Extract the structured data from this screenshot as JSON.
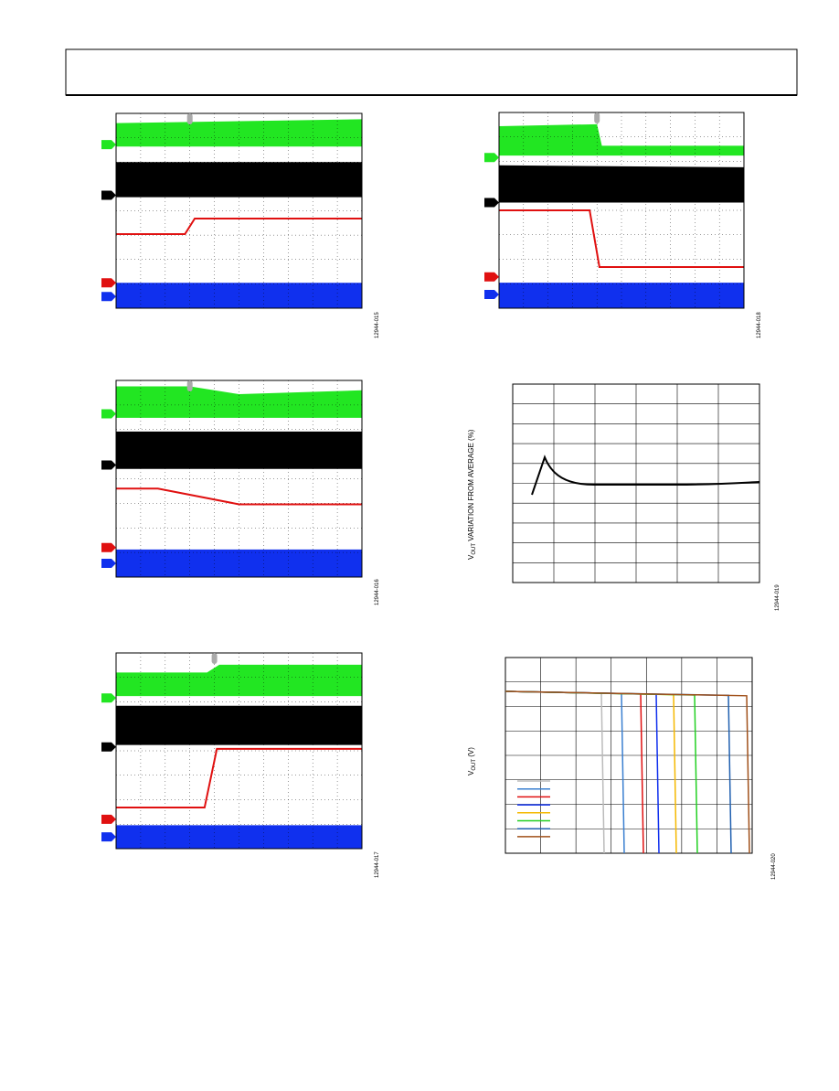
{
  "figures": [
    {
      "id": "12944-015"
    },
    {
      "id": "12944-016"
    },
    {
      "id": "12944-017"
    },
    {
      "id": "12944-018"
    },
    {
      "id": "12944-019",
      "ylabel": [
        "V",
        "OUT",
        " VARIATION FROM AVERAGE (%)"
      ]
    },
    {
      "id": "12944-020",
      "ylabel": [
        "V",
        "OUT",
        " (V)"
      ]
    }
  ]
}
